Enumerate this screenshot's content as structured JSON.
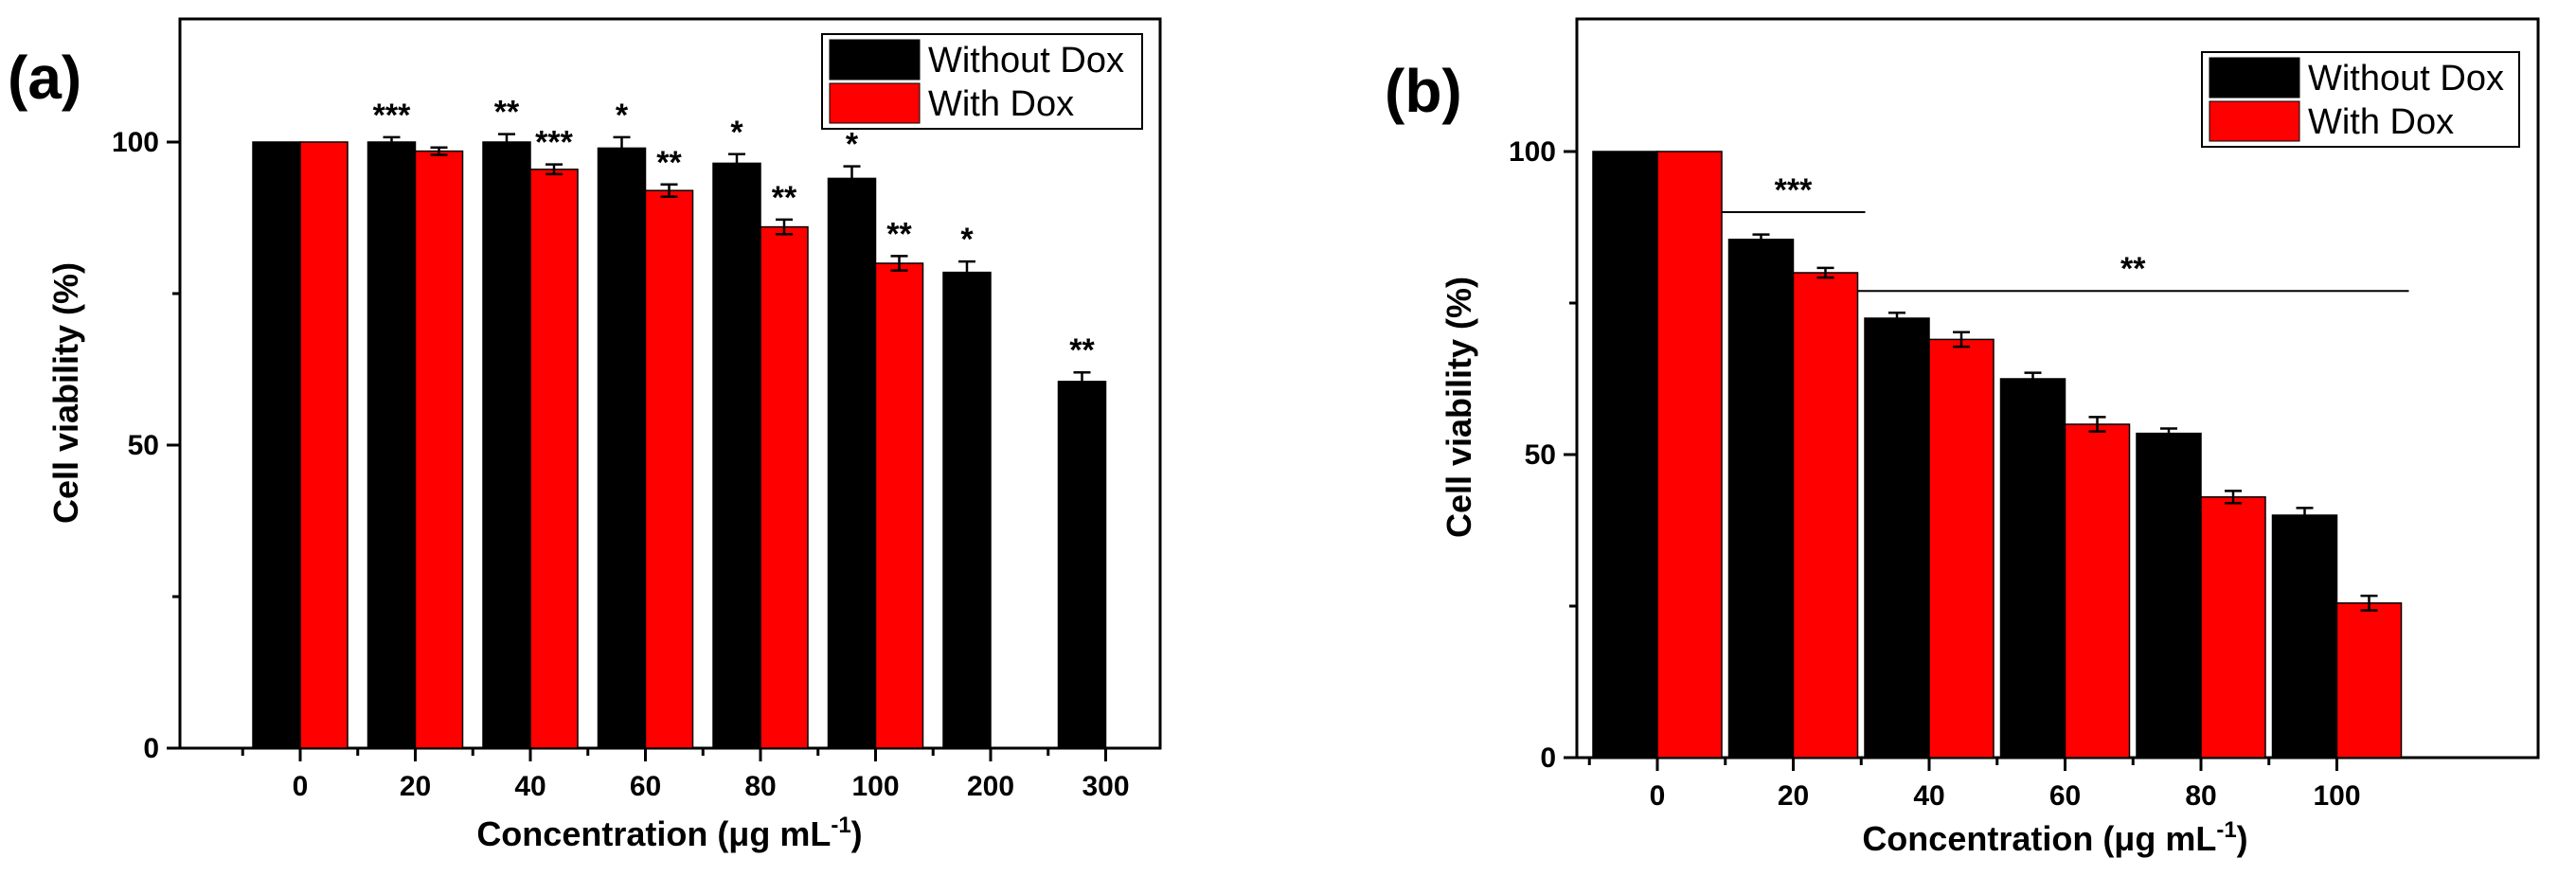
{
  "chart_data": [
    {
      "type": "bar",
      "panel_label": "(a)",
      "xlabel": "Concentration (μg mL",
      "xlabel_sup": "-1",
      "xlabel_end": ")",
      "ylabel": "Cell viability (%)",
      "ylim": [
        0,
        120
      ],
      "yticks": [
        "0",
        "50",
        "100"
      ],
      "categories": [
        "0",
        "20",
        "40",
        "60",
        "80",
        "100",
        "200",
        "300"
      ],
      "series": [
        {
          "name": "Without Dox",
          "color": "#000000",
          "values": [
            100,
            100,
            100,
            99,
            96.5,
            94,
            78.5,
            60.5
          ],
          "errors": [
            0,
            0.8,
            1.3,
            1.8,
            1.5,
            2.0,
            1.8,
            1.5
          ],
          "sig": [
            "",
            "***",
            "**",
            "*",
            "*",
            "*",
            "*",
            "**"
          ]
        },
        {
          "name": "With Dox",
          "color": "#ff0000",
          "values": [
            100,
            98.5,
            95.5,
            92,
            86,
            80,
            null,
            null
          ],
          "errors": [
            0,
            0.6,
            0.8,
            1.0,
            1.2,
            1.2,
            null,
            null
          ],
          "sig": [
            "",
            "",
            "***",
            "**",
            "**",
            "**",
            "",
            ""
          ]
        }
      ],
      "legend_position": "top-right"
    },
    {
      "type": "bar",
      "panel_label": "(b)",
      "xlabel": "Concentration (μg mL",
      "xlabel_sup": "-1",
      "xlabel_end": ")",
      "ylabel": "Cell viability (%)",
      "ylim": [
        0,
        100
      ],
      "yticks": [
        "0",
        "50",
        "100"
      ],
      "categories": [
        "0",
        "20",
        "40",
        "60",
        "80",
        "100"
      ],
      "series": [
        {
          "name": "Without Dox",
          "color": "#000000",
          "values": [
            100,
            85.5,
            72.5,
            62.5,
            53.5,
            40
          ],
          "errors": [
            0,
            0.8,
            0.9,
            1.0,
            0.8,
            1.2
          ]
        },
        {
          "name": "With Dox",
          "color": "#ff0000",
          "values": [
            100,
            80,
            69,
            55,
            43,
            25.5
          ],
          "errors": [
            0,
            0.8,
            1.2,
            1.2,
            1.0,
            1.2
          ]
        }
      ],
      "brackets": [
        {
          "label": "***",
          "from": 1,
          "to": 1,
          "level": 90
        },
        {
          "label": "**",
          "from": 2,
          "to": 5,
          "level": 77
        }
      ],
      "legend_position": "top-right"
    }
  ]
}
